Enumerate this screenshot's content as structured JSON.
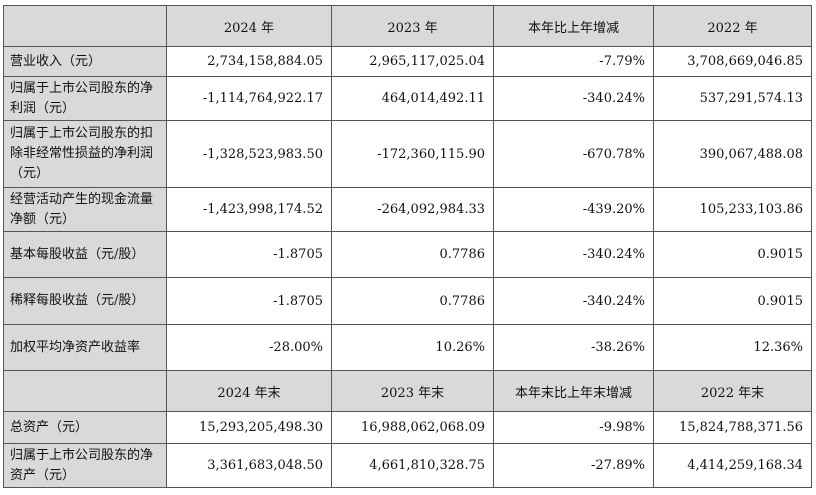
{
  "header1": [
    "",
    "2024 年",
    "2023 年",
    "本年比上年增减",
    "2022 年"
  ],
  "rows1": [
    {
      "label": "营业收入（元）",
      "values": [
        "2,734,158,884.05",
        "2,965,117,025.04",
        "-7.79%",
        "3,708,669,046.85"
      ]
    },
    {
      "label": "归属于上市公司股东的净利润（元）",
      "values": [
        "-1,114,764,922.17",
        "464,014,492.11",
        "-340.24%",
        "537,291,574.13"
      ]
    },
    {
      "label": "归属于上市公司股东的扣除非经常性损益的净利润（元）",
      "values": [
        "-1,328,523,983.50",
        "-172,360,115.90",
        "-670.78%",
        "390,067,488.08"
      ]
    },
    {
      "label": "经营活动产生的现金流量净额（元）",
      "values": [
        "-1,423,998,174.52",
        "-264,092,984.33",
        "-439.20%",
        "105,233,103.86"
      ]
    },
    {
      "label": "基本每股收益（元/股）",
      "values": [
        "-1.8705",
        "0.7786",
        "-340.24%",
        "0.9015"
      ]
    },
    {
      "label": "稀释每股收益（元/股）",
      "values": [
        "-1.8705",
        "0.7786",
        "-340.24%",
        "0.9015"
      ]
    },
    {
      "label": "加权平均净资产收益率",
      "values": [
        "-28.00%",
        "10.26%",
        "-38.26%",
        "12.36%"
      ]
    }
  ],
  "header2": [
    "",
    "2024 年末",
    "2023 年末",
    "本年末比上年末增减",
    "2022 年末"
  ],
  "rows2": [
    {
      "label": "总资产（元）",
      "values": [
        "15,293,205,498.30",
        "16,988,062,068.09",
        "-9.98%",
        "15,824,788,371.56"
      ]
    },
    {
      "label": "归属于上市公司股东的净资产（元）",
      "values": [
        "3,361,683,048.50",
        "4,661,810,328.75",
        "-27.89%",
        "4,414,259,168.34"
      ]
    }
  ]
}
